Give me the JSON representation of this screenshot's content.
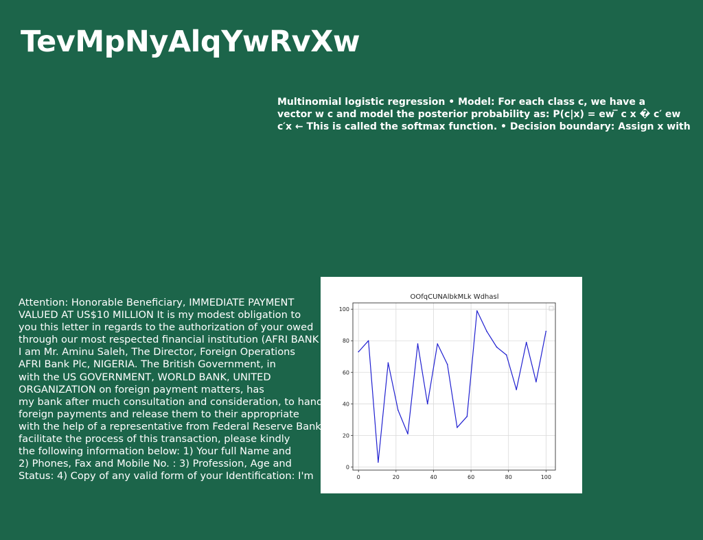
{
  "page": {
    "title": "TevMpNyAlqYwRvXw",
    "abstract_lines": [
      "Multinomial logistic regression • Model: For each class c, we have a",
      "vector w c and model the posterior probability as: P(c|x) = ew ̅ c x � c′ ew",
      "c′x ← This is called the softmax function. • Decision boundary: Assign x with"
    ],
    "letter_lines": [
      "Attention: Honorable Beneficiary, IMMEDIATE PAYMENT",
      "VALUED AT US$10 MILLION It is my modest obligation to",
      "you this letter in regards to the authorization of your owed",
      "through our most respected financial institution (AFRI BANK",
      "I am Mr. Aminu Saleh, The Director, Foreign Operations",
      "AFRI Bank Plc, NIGERIA. The British Government, in",
      "with the US GOVERNMENT, WORLD BANK, UNITED",
      "ORGANIZATION on foreign payment matters, has",
      "my bank after much consultation and consideration, to handle",
      "foreign payments and release them to their appropriate",
      "with the help of a representative from Federal Reserve Bank.",
      "facilitate the process of this transaction, please kindly",
      "the following information below: 1) Your full Name and",
      "2) Phones, Fax and Mobile No. : 3) Profession, Age and",
      "Status: 4) Copy of any valid form of your Identification: I'm"
    ],
    "colors": {
      "background": "#1c654a",
      "line": "#1f1fd0"
    }
  },
  "chart_data": {
    "type": "line",
    "title": "OOfqCUNAlbkMLk Wdhasl",
    "xlabel": "",
    "ylabel": "",
    "xlim": [
      -3,
      105
    ],
    "ylim": [
      -2,
      104
    ],
    "x_ticks": [
      0,
      20,
      40,
      60,
      80,
      100
    ],
    "y_ticks": [
      0,
      20,
      40,
      60,
      80,
      100
    ],
    "grid": true,
    "legend": "top-right (empty)",
    "series": [
      {
        "x": [
          0,
          5.3,
          10.5,
          15.8,
          21.1,
          26.3,
          31.6,
          36.8,
          42.1,
          47.4,
          52.6,
          57.9,
          63.2,
          68.4,
          73.7,
          78.9,
          84.2,
          89.5,
          94.7,
          100
        ],
        "values": [
          73,
          80,
          3,
          66,
          36,
          21,
          78,
          40,
          78,
          65,
          25,
          32,
          99,
          86,
          76,
          71,
          49,
          79,
          54,
          86
        ],
        "color": "#1f1fd0"
      }
    ]
  }
}
